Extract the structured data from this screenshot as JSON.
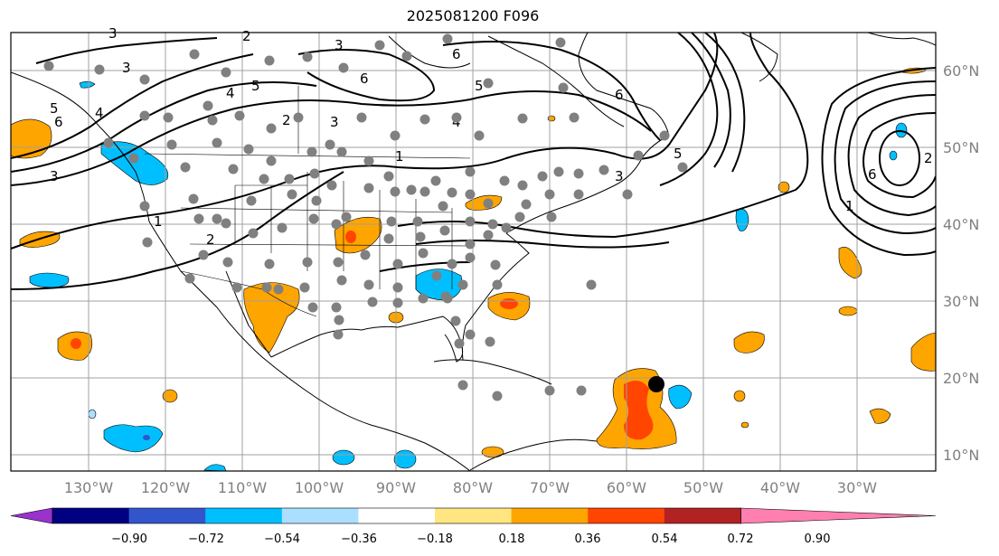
{
  "title": "2025081200 F096",
  "lat_labels": [
    "60°N",
    "50°N",
    "40°N",
    "30°N",
    "20°N",
    "10°N"
  ],
  "lon_labels": [
    "130°W",
    "120°W",
    "110°W",
    "100°W",
    "90°W",
    "80°W",
    "70°W",
    "60°W",
    "50°W",
    "40°W",
    "30°W"
  ],
  "colorbar": {
    "ticks": [
      "−0.90",
      "−0.72",
      "−0.54",
      "−0.36",
      "−0.18",
      "0.18",
      "0.36",
      "0.54",
      "0.72",
      "0.90"
    ],
    "colors": [
      "#9933cc",
      "#000080",
      "#3355cc",
      "#00bfff",
      "#aadfff",
      "#ffffff",
      "#ffe680",
      "#ffa500",
      "#ff4500",
      "#b22222",
      "#ff80b0"
    ]
  },
  "contour_labels": [
    "3",
    "2",
    "3",
    "6",
    "5",
    "4",
    "3",
    "1",
    "6",
    "4",
    "5",
    "6",
    "4",
    "2",
    "3",
    "1",
    "2",
    "3",
    "5",
    "6",
    "3",
    "6",
    "2",
    "1",
    "5"
  ],
  "colors": {
    "positive": "#ffa500",
    "strong_positive": "#ff4500",
    "negative": "#00bfff",
    "station": "#808080",
    "marker": "#000000"
  }
}
